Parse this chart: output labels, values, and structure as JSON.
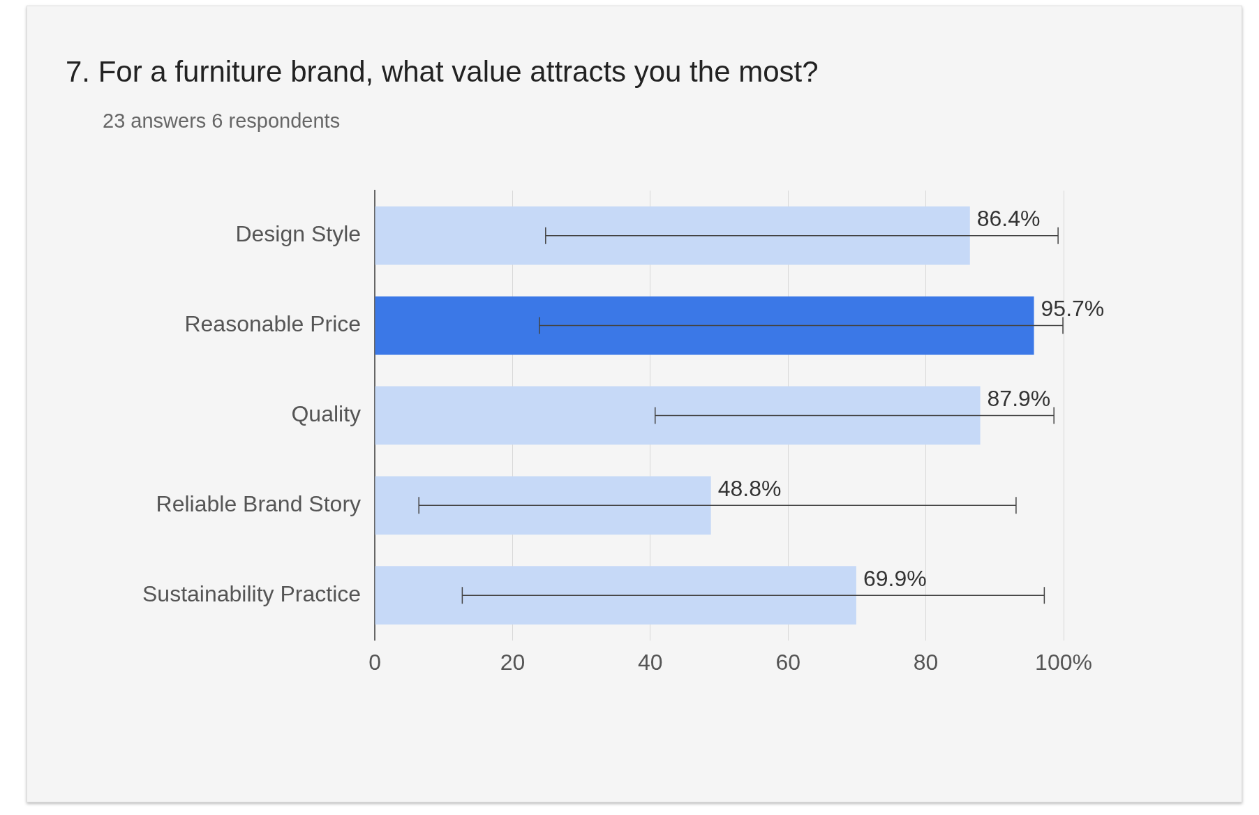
{
  "chart_data": {
    "type": "bar",
    "orientation": "horizontal",
    "title": "7.  For a furniture brand, what value attracts you the most?",
    "subtitle": "23 answers 6 respondents",
    "categories": [
      "Design Style",
      "Reasonable Price",
      "Quality",
      "Reliable Brand Story",
      "Sustainability Practice"
    ],
    "values": [
      86.4,
      95.7,
      87.9,
      48.8,
      69.9
    ],
    "colors": [
      "#c6d9f7",
      "#3b78e7",
      "#c6d9f7",
      "#c6d9f7",
      "#c6d9f7"
    ],
    "errors": [
      [
        24.8,
        99.2
      ],
      [
        23.9,
        99.9
      ],
      [
        40.7,
        98.6
      ],
      [
        6.4,
        93.1
      ],
      [
        12.7,
        97.2
      ]
    ],
    "value_labels": [
      "86.4%",
      "95.7%",
      "87.9%",
      "48.8%",
      "69.9%"
    ],
    "xlim": [
      0,
      100
    ],
    "xticks": [
      0,
      20,
      40,
      60,
      80,
      {
        "value": 100,
        "label": "100%"
      }
    ],
    "grid": "x",
    "legend": false
  }
}
